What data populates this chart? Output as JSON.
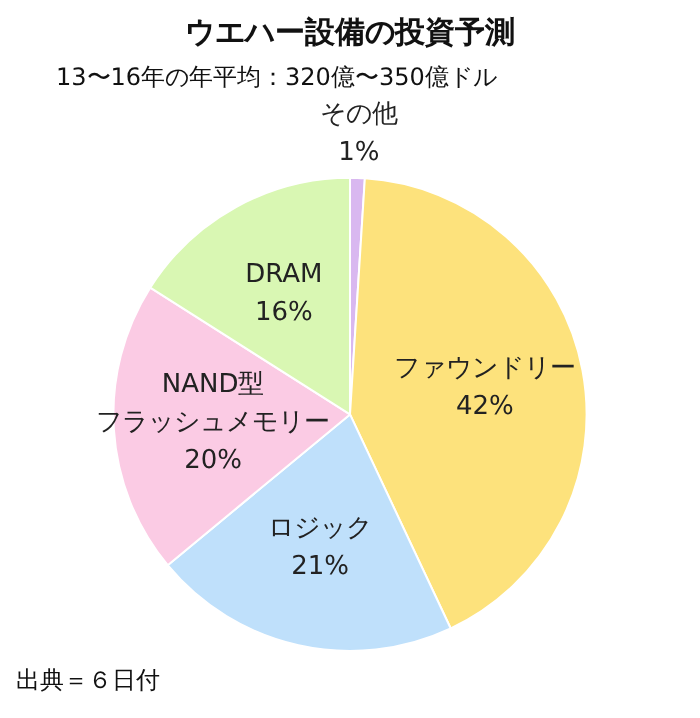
{
  "chart_data": {
    "type": "pie",
    "title": "ウエハー設備の投資予測",
    "subtitle": "13〜16年の年平均：320億〜350億ドル",
    "categories": [
      "その他",
      "ファウンドリー",
      "ロジック",
      "NAND型フラッシュメモリー",
      "DRAM"
    ],
    "values": [
      1,
      42,
      21,
      20,
      16
    ],
    "value_labels": [
      "1%",
      "42%",
      "21%",
      "20%",
      "16%"
    ],
    "colors": [
      "#d9b8f0",
      "#fde27c",
      "#bfe0fb",
      "#fbcbe4",
      "#d9f7b3"
    ],
    "legend": false,
    "annotations": [
      "出典＝６日付"
    ]
  }
}
